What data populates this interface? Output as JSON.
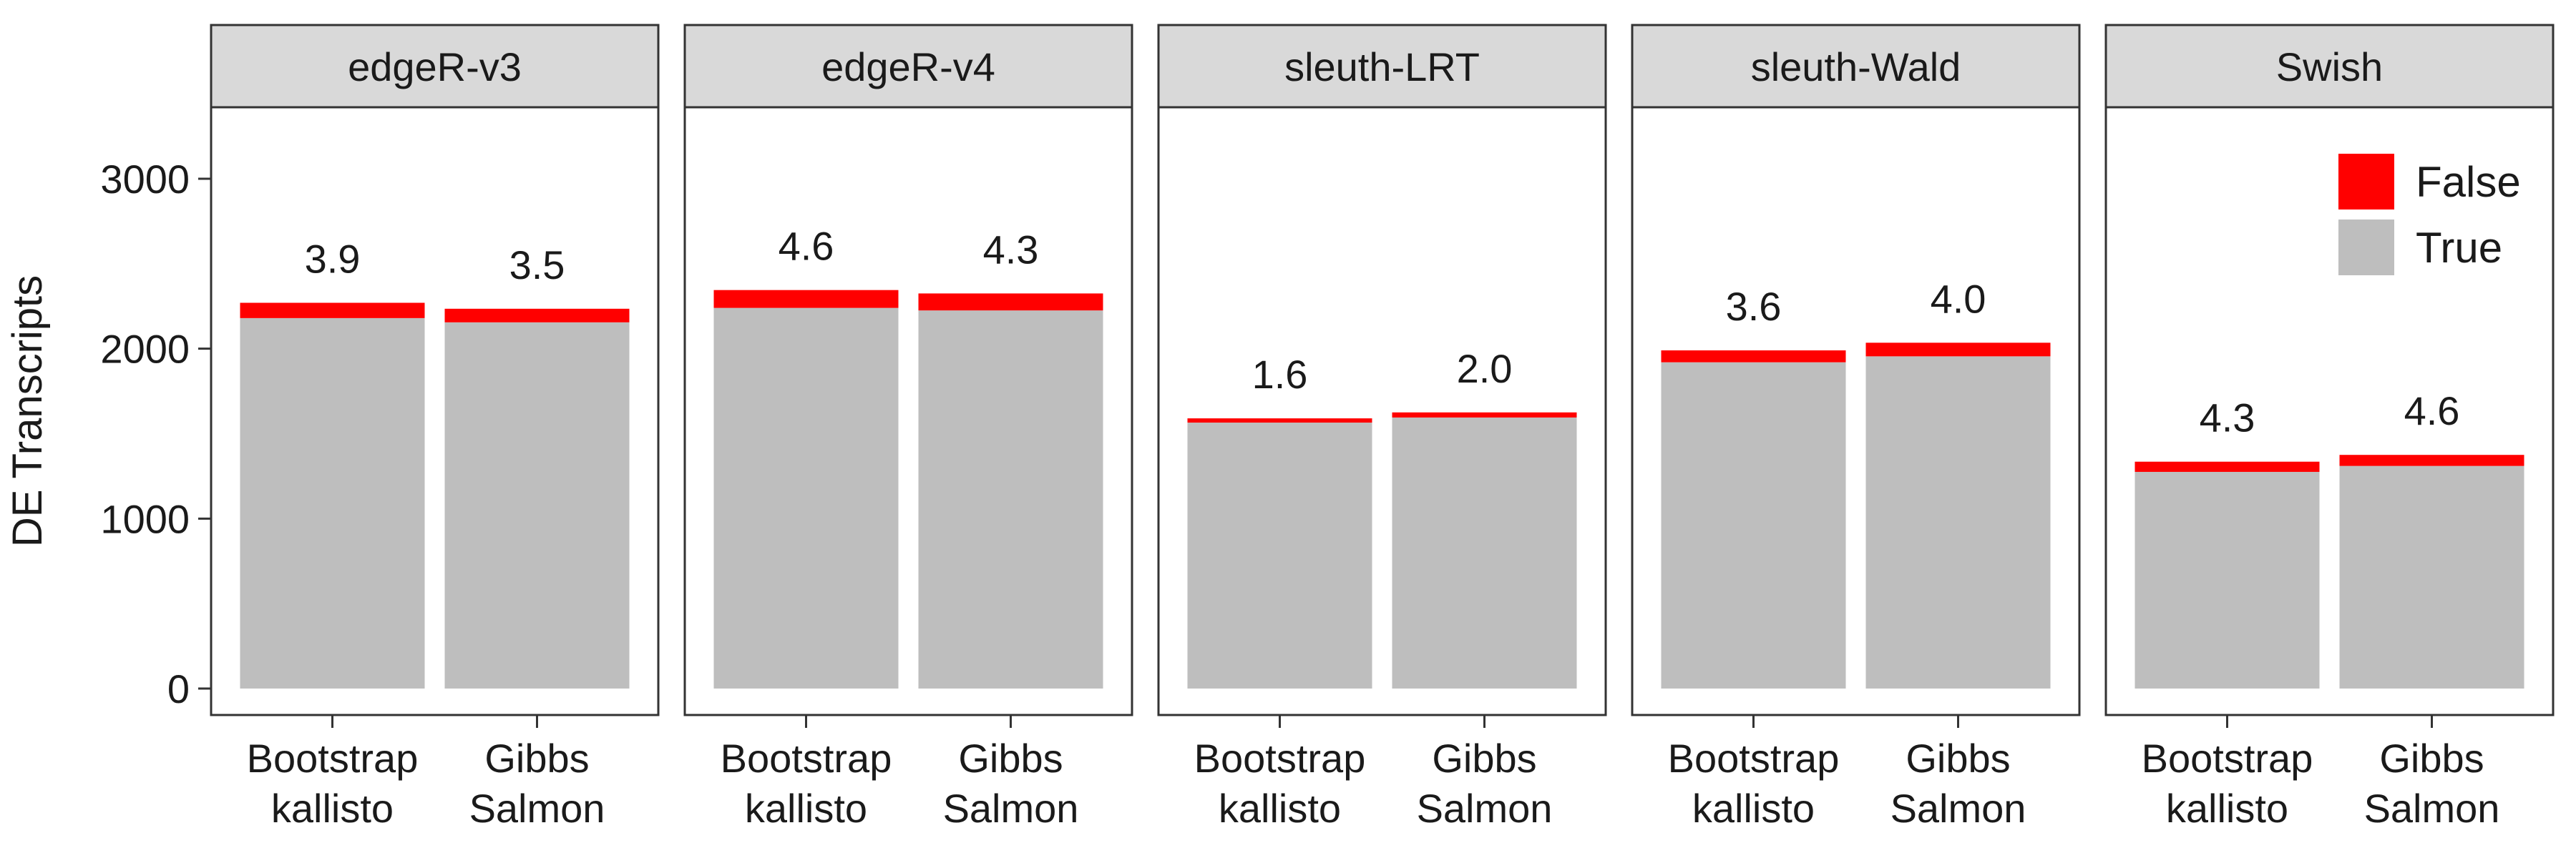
{
  "chart_data": {
    "type": "bar",
    "stacked": true,
    "ylabel": "DE Transcripts",
    "xlabel": "",
    "ylim": [
      0,
      3450
    ],
    "yticks": [
      0,
      1000,
      2000,
      3000
    ],
    "categories": [
      "Bootstrap\nkallisto",
      "Gibbs\nSalmon"
    ],
    "panels": [
      {
        "name": "edgeR-v3",
        "bars": [
          {
            "category": "Bootstrap\nkallisto",
            "true": 2180,
            "false": 90,
            "label": "3.9"
          },
          {
            "category": "Gibbs\nSalmon",
            "true": 2155,
            "false": 80,
            "label": "3.5"
          }
        ]
      },
      {
        "name": "edgeR-v4",
        "bars": [
          {
            "category": "Bootstrap\nkallisto",
            "true": 2240,
            "false": 105,
            "label": "4.6"
          },
          {
            "category": "Gibbs\nSalmon",
            "true": 2225,
            "false": 100,
            "label": "4.3"
          }
        ]
      },
      {
        "name": "sleuth-LRT",
        "bars": [
          {
            "category": "Bootstrap\nkallisto",
            "true": 1565,
            "false": 25,
            "label": "1.6"
          },
          {
            "category": "Gibbs\nSalmon",
            "true": 1595,
            "false": 30,
            "label": "2.0"
          }
        ]
      },
      {
        "name": "sleuth-Wald",
        "bars": [
          {
            "category": "Bootstrap\nkallisto",
            "true": 1920,
            "false": 70,
            "label": "3.6"
          },
          {
            "category": "Gibbs\nSalmon",
            "true": 1955,
            "false": 80,
            "label": "4.0"
          }
        ]
      },
      {
        "name": "Swish",
        "bars": [
          {
            "category": "Bootstrap\nkallisto",
            "true": 1275,
            "false": 60,
            "label": "4.3"
          },
          {
            "category": "Gibbs\nSalmon",
            "true": 1310,
            "false": 65,
            "label": "4.6"
          }
        ]
      }
    ],
    "legend": {
      "placement": "top-right",
      "items": [
        {
          "name": "False",
          "color": "#ff0000"
        },
        {
          "name": "True",
          "color": "#bebebe"
        }
      ]
    },
    "colors": {
      "false": "#ff0000",
      "true": "#bebebe",
      "strip": "#d9d9d9"
    },
    "grid": false
  }
}
